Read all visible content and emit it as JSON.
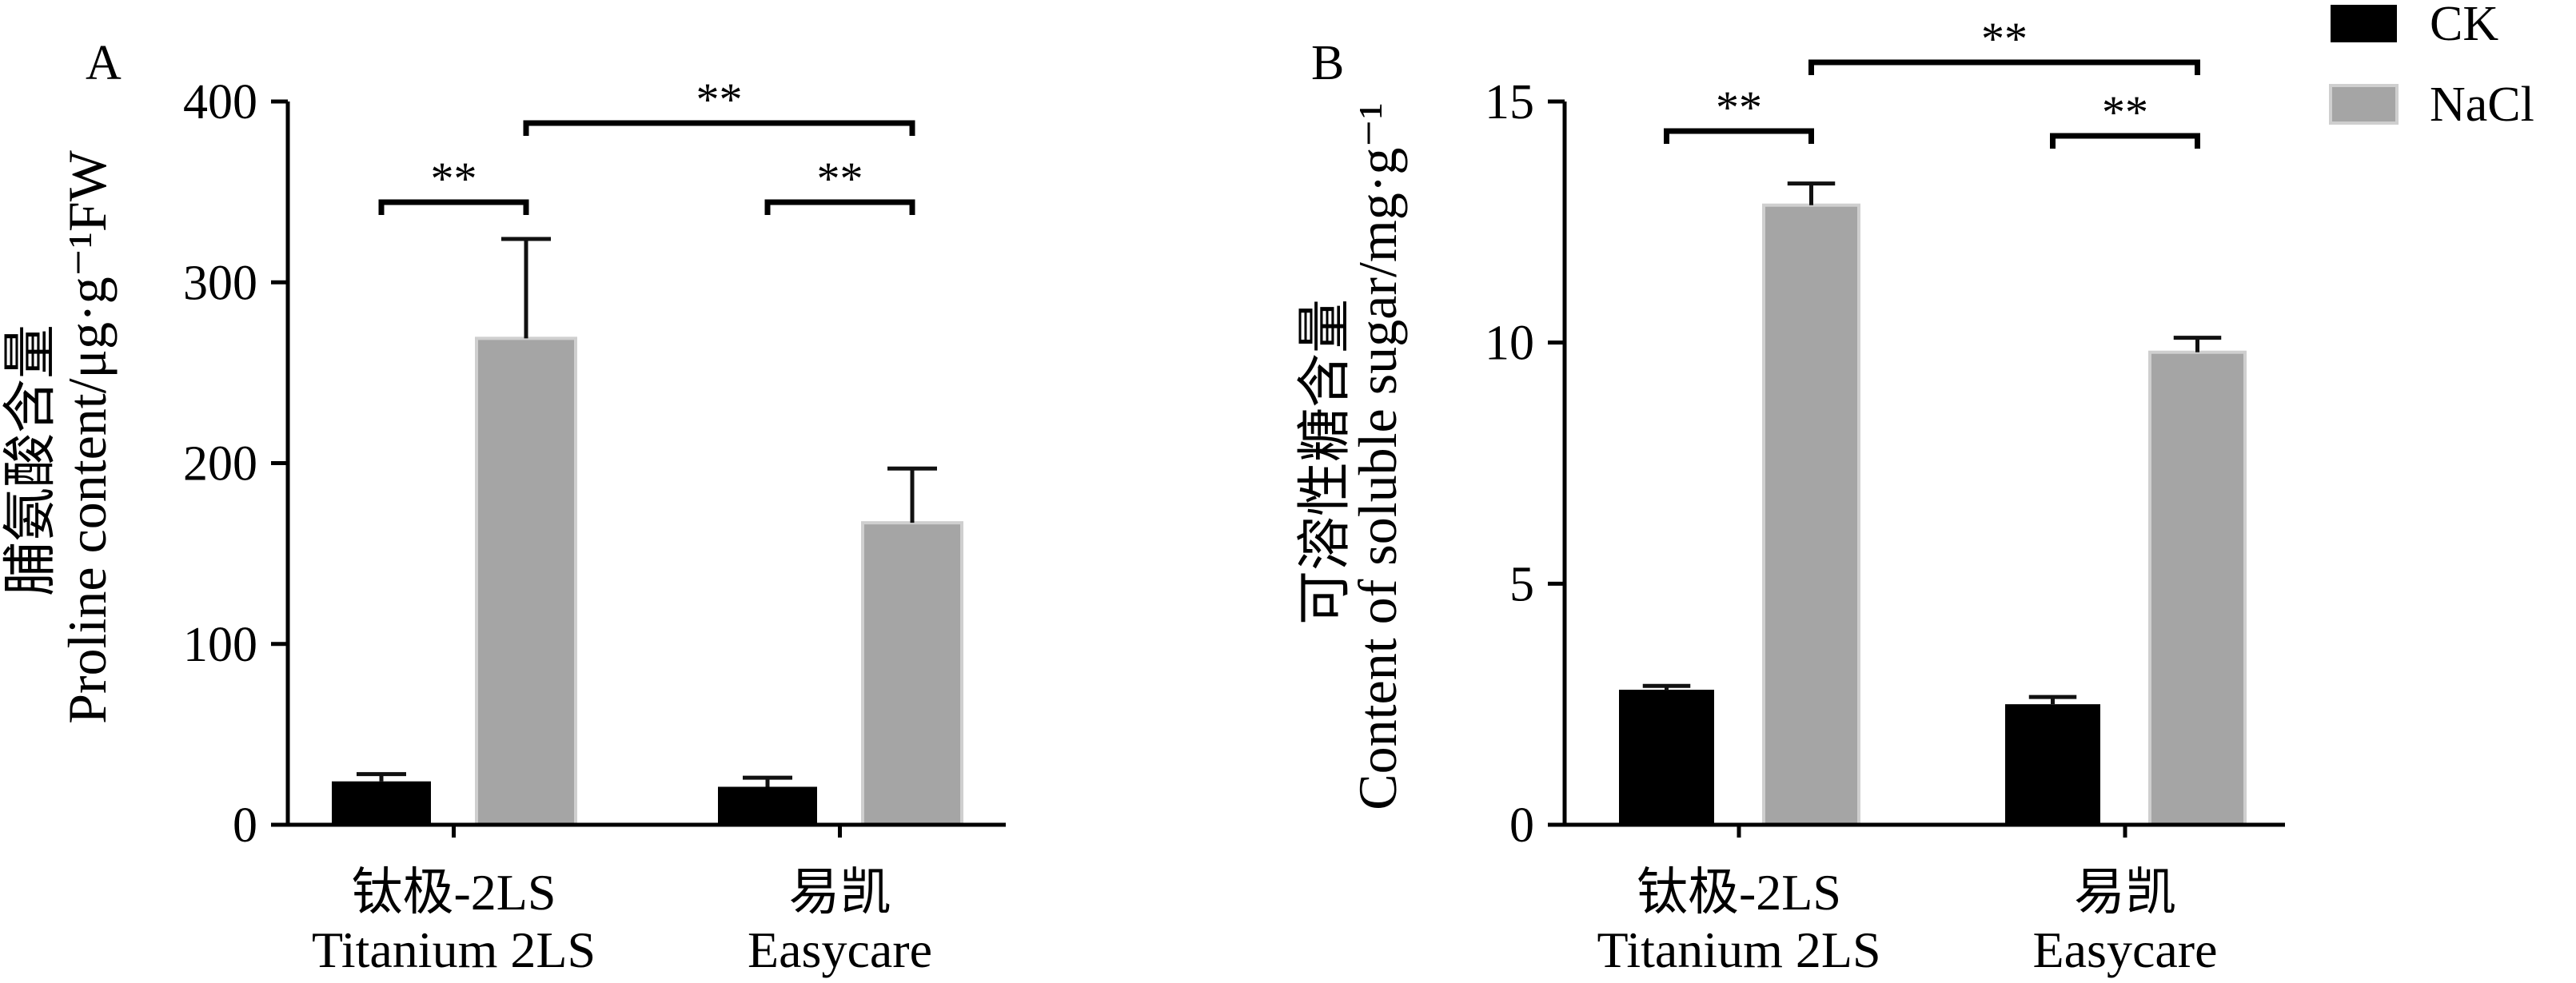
{
  "chart_data": [
    {
      "panel_label": "A",
      "type": "bar",
      "categories": [
        [
          "钛极-2LS",
          "Titanium 2LS"
        ],
        [
          "易凯",
          "Easycare"
        ]
      ],
      "ylabel": [
        "脯氨酸含量",
        "Proline content/μg·g⁻¹FW"
      ],
      "ylim": [
        0,
        400
      ],
      "yticks": [
        0,
        100,
        200,
        300,
        400
      ],
      "grid": false,
      "series": [
        {
          "name": "CK",
          "color": "#000000",
          "values": [
            24,
            21
          ],
          "errors": [
            4,
            5
          ]
        },
        {
          "name": "NaCl",
          "color": "#a5a5a5",
          "values": [
            269,
            167
          ],
          "errors": [
            55,
            30
          ]
        }
      ],
      "significance": [
        {
          "between": [
            {
              "category": 0,
              "series": 0
            },
            {
              "category": 0,
              "series": 1
            }
          ],
          "label": "**"
        },
        {
          "between": [
            {
              "category": 1,
              "series": 0
            },
            {
              "category": 1,
              "series": 1
            }
          ],
          "label": "**"
        },
        {
          "between": [
            {
              "category": 0,
              "series": 1
            },
            {
              "category": 1,
              "series": 1
            }
          ],
          "label": "**"
        }
      ]
    },
    {
      "panel_label": "B",
      "type": "bar",
      "categories": [
        [
          "钛极-2LS",
          "Titanium 2LS"
        ],
        [
          "易凯",
          "Easycare"
        ]
      ],
      "ylabel": [
        "可溶性糖含量",
        "Content of soluble sugar/mg·g⁻¹"
      ],
      "ylim": [
        0,
        15
      ],
      "yticks": [
        0,
        5,
        10,
        15
      ],
      "grid": false,
      "legend": "top-right",
      "series": [
        {
          "name": "CK",
          "color": "#000000",
          "values": [
            2.8,
            2.5
          ],
          "errors": [
            0.08,
            0.15
          ]
        },
        {
          "name": "NaCl",
          "color": "#a5a5a5",
          "values": [
            12.85,
            9.8
          ],
          "errors": [
            0.45,
            0.3
          ]
        }
      ],
      "significance": [
        {
          "between": [
            {
              "category": 0,
              "series": 0
            },
            {
              "category": 0,
              "series": 1
            }
          ],
          "label": "**"
        },
        {
          "between": [
            {
              "category": 1,
              "series": 0
            },
            {
              "category": 1,
              "series": 1
            }
          ],
          "label": "**"
        },
        {
          "between": [
            {
              "category": 0,
              "series": 1
            },
            {
              "category": 1,
              "series": 1
            }
          ],
          "label": "**"
        }
      ]
    }
  ]
}
